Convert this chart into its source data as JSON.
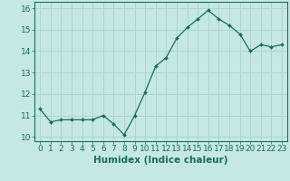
{
  "x": [
    0,
    1,
    2,
    3,
    4,
    5,
    6,
    7,
    8,
    9,
    10,
    11,
    12,
    13,
    14,
    15,
    16,
    17,
    18,
    19,
    20,
    21,
    22,
    23
  ],
  "y": [
    11.3,
    10.7,
    10.8,
    10.8,
    10.8,
    10.8,
    11.0,
    10.6,
    10.1,
    11.0,
    12.1,
    13.3,
    13.7,
    14.6,
    15.1,
    15.5,
    15.9,
    15.5,
    15.2,
    14.8,
    14.0,
    14.3,
    14.2,
    14.3
  ],
  "line_color": "#1a6b5a",
  "marker": "D",
  "markersize": 2.0,
  "linewidth": 0.9,
  "xlabel": "Humidex (Indice chaleur)",
  "xlim": [
    -0.5,
    23.5
  ],
  "ylim": [
    9.8,
    16.3
  ],
  "yticks": [
    10,
    11,
    12,
    13,
    14,
    15,
    16
  ],
  "xticks": [
    0,
    1,
    2,
    3,
    4,
    5,
    6,
    7,
    8,
    9,
    10,
    11,
    12,
    13,
    14,
    15,
    16,
    17,
    18,
    19,
    20,
    21,
    22,
    23
  ],
  "xtick_labels": [
    "0",
    "1",
    "2",
    "3",
    "4",
    "5",
    "6",
    "7",
    "8",
    "9",
    "10",
    "11",
    "12",
    "13",
    "14",
    "15",
    "16",
    "17",
    "18",
    "19",
    "20",
    "21",
    "22",
    "23"
  ],
  "bg_color": "#c5e8e5",
  "grid_color": "#aed4d0",
  "tick_fontsize": 6.5,
  "xlabel_fontsize": 7.5
}
